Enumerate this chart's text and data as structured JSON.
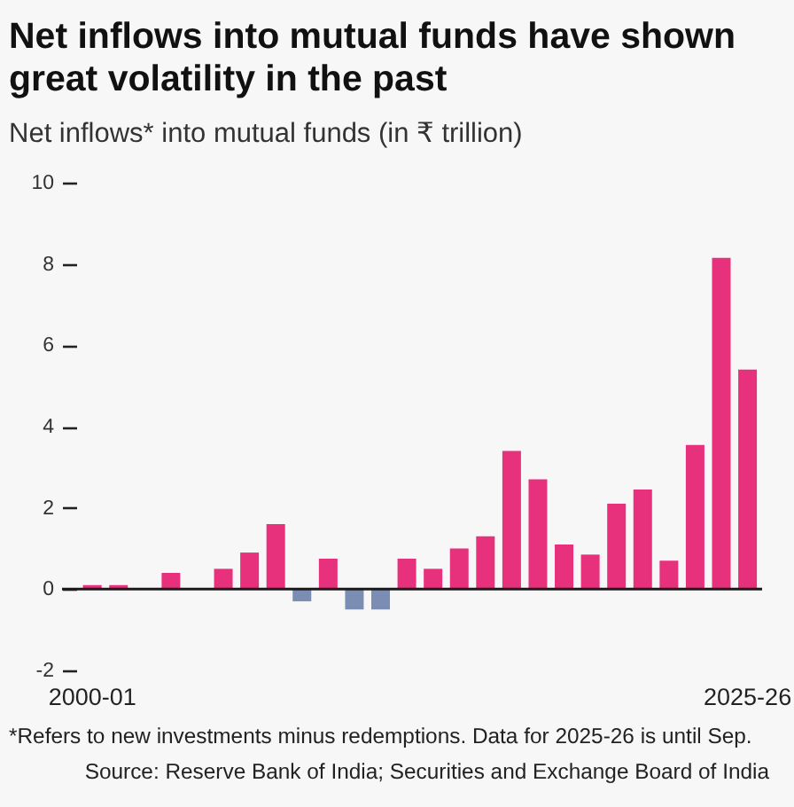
{
  "chart_data": {
    "type": "bar",
    "title": "Net inflows into mutual funds have shown great volatility in the past",
    "subtitle": "Net inflows* into mutual funds (in ₹ trillion)",
    "categories": [
      "2000-01",
      null,
      null,
      null,
      null,
      null,
      null,
      null,
      null,
      null,
      null,
      null,
      null,
      null,
      null,
      null,
      null,
      null,
      null,
      null,
      null,
      null,
      null,
      null,
      null,
      "2025-26"
    ],
    "values": [
      0.1,
      0.1,
      0,
      0.4,
      0,
      0.5,
      0.9,
      1.6,
      -0.3,
      0.75,
      -0.5,
      -0.5,
      0.75,
      0.5,
      1.0,
      1.3,
      3.4,
      2.7,
      1.1,
      0.85,
      2.1,
      2.45,
      0.7,
      3.55,
      8.15,
      5.4
    ],
    "colors": [
      "#e8317d",
      "#e8317d",
      "#e8317d",
      "#e8317d",
      "#e8317d",
      "#e8317d",
      "#e8317d",
      "#e8317d",
      "#7b8db3",
      "#e8317d",
      "#7b8db3",
      "#7b8db3",
      "#e8317d",
      "#e8317d",
      "#e8317d",
      "#e8317d",
      "#e8317d",
      "#e8317d",
      "#e8317d",
      "#e8317d",
      "#e8317d",
      "#e8317d",
      "#e8317d",
      "#e8317d",
      "#e8317d",
      "#e8317d"
    ],
    "ylim": [
      -2,
      10
    ],
    "yticks": [
      -2,
      0,
      2,
      4,
      6,
      8,
      10
    ],
    "grid": false,
    "ref_lines": [
      {
        "axis": "y",
        "value": 0,
        "color": "#1a1a1a"
      }
    ],
    "annotations": [
      "*Refers to new investments minus redemptions. Data for 2025-26 is until Sep.",
      "Source: Reserve Bank of India; Securities and Exchange Board of India"
    ]
  }
}
